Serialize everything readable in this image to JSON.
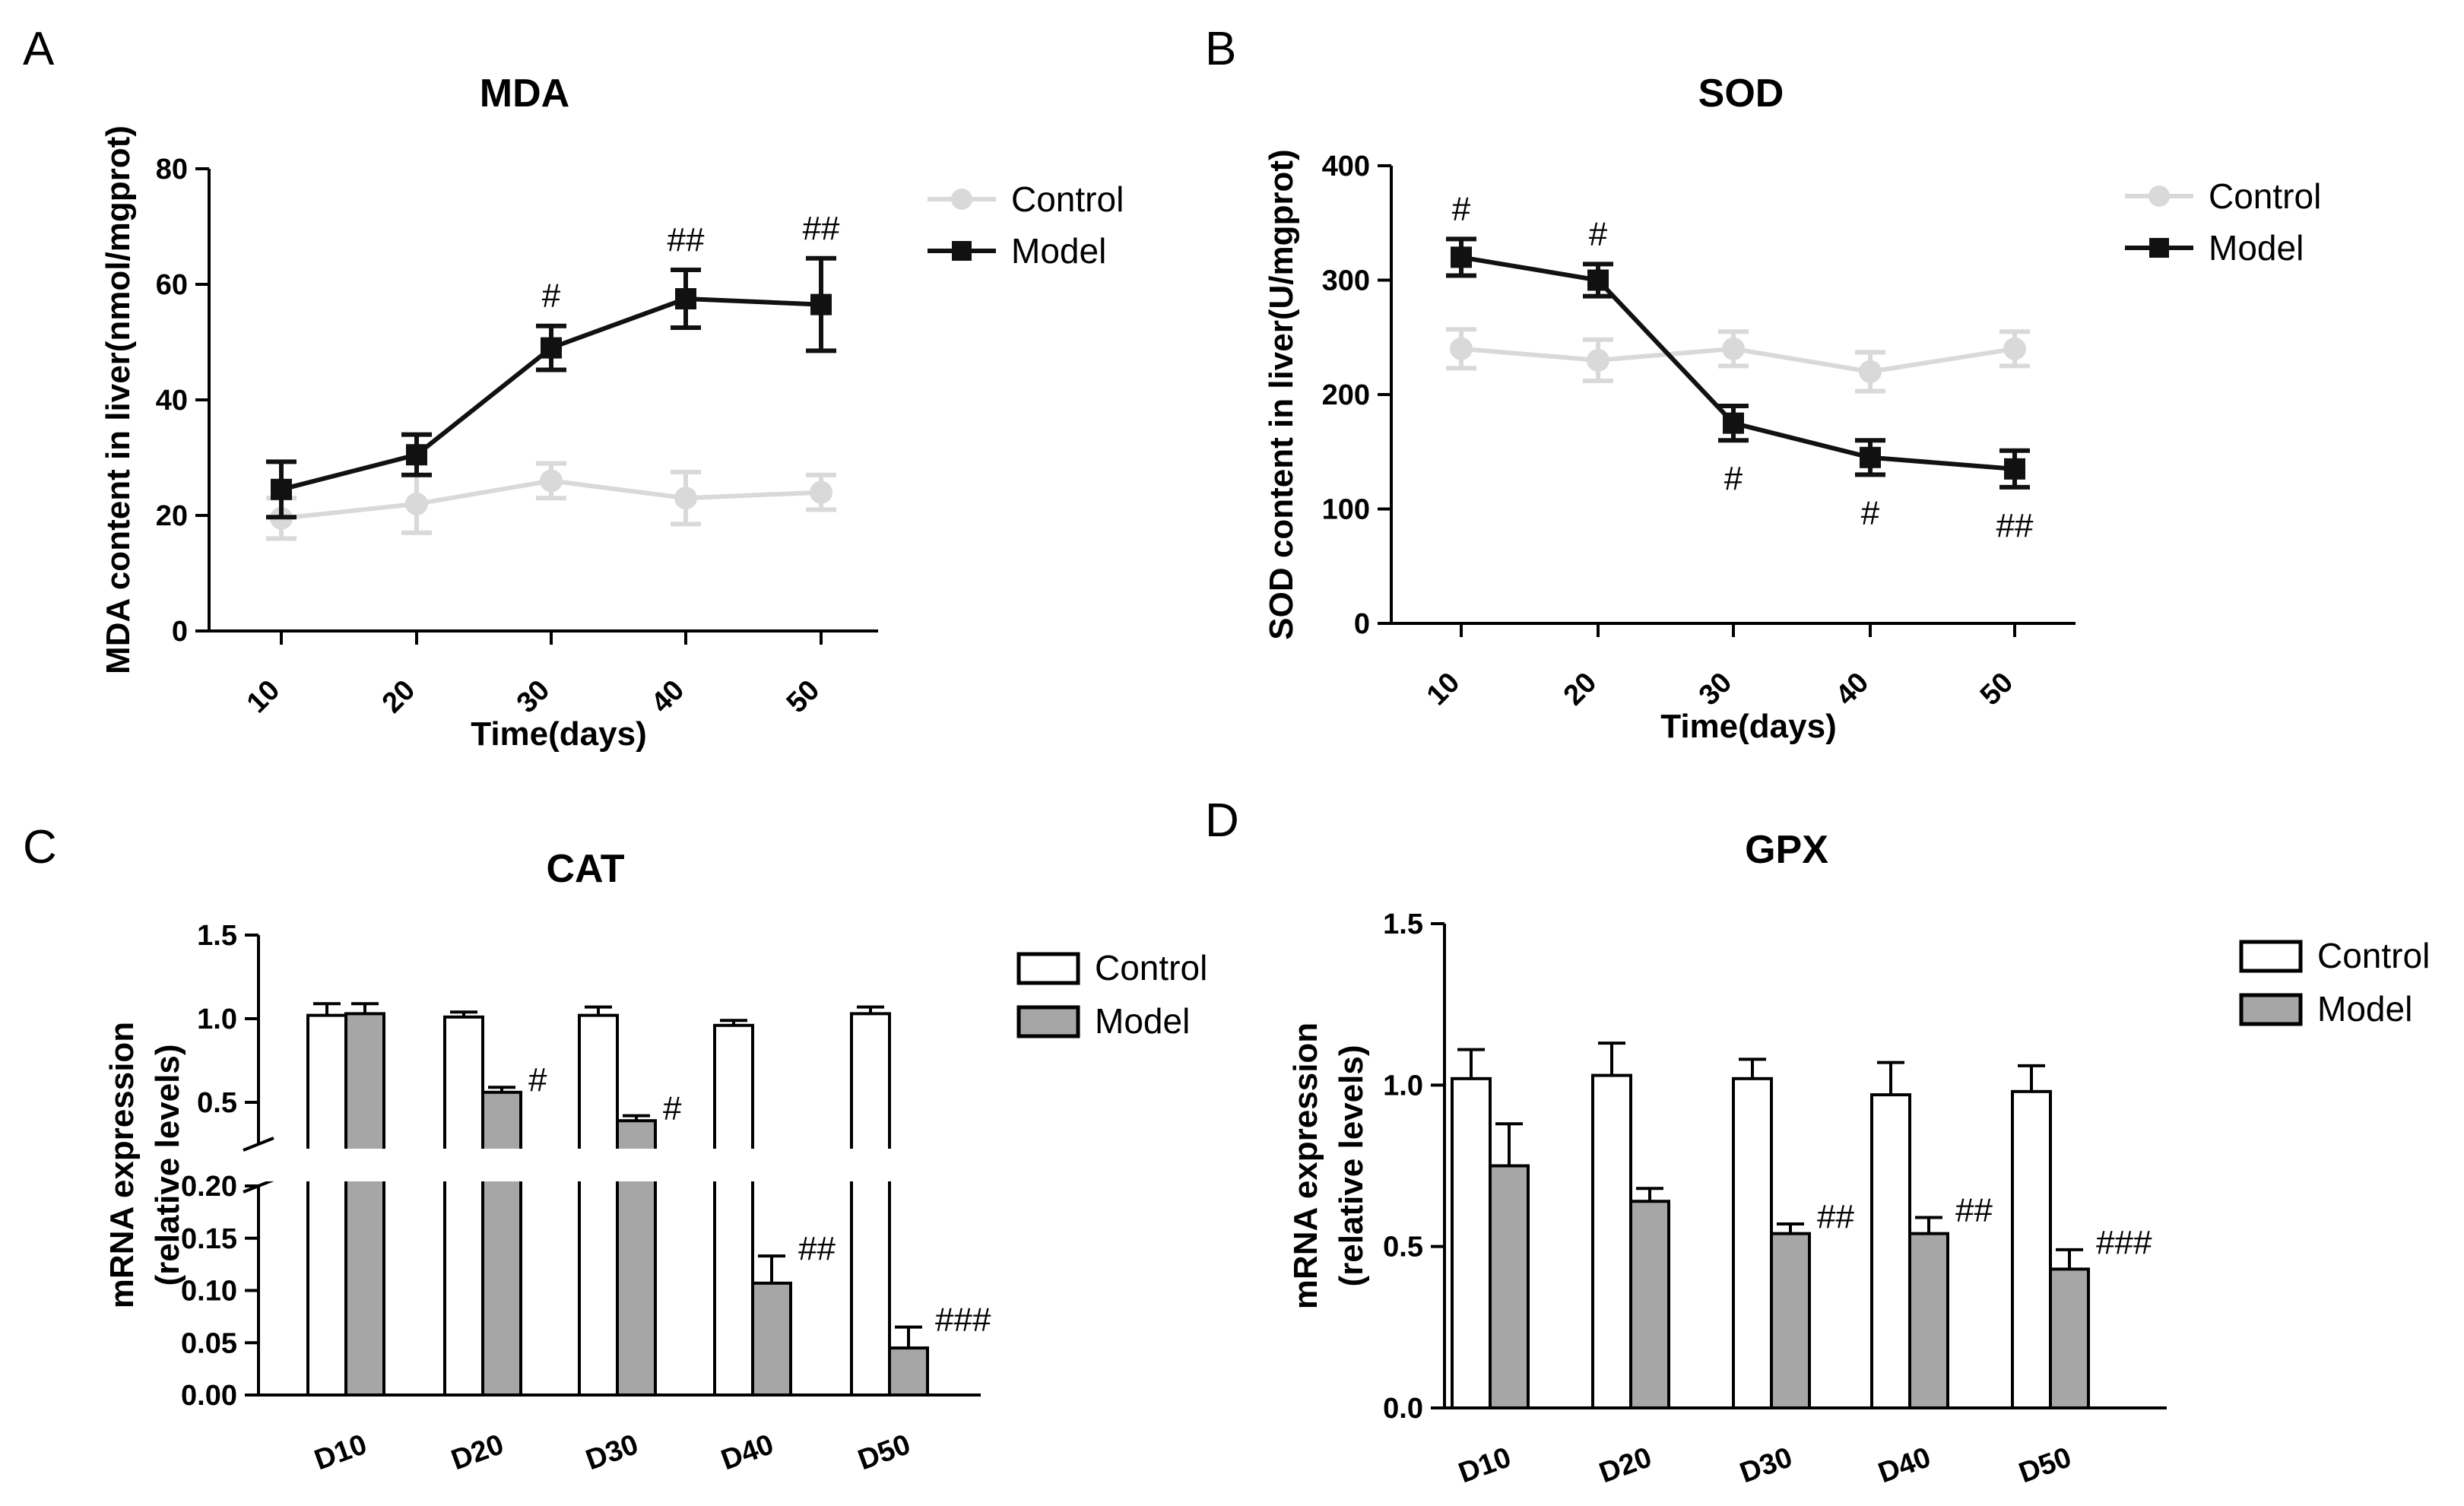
{
  "figure": {
    "panels": [
      "A",
      "B",
      "C",
      "D"
    ]
  },
  "chart_data": [
    {
      "id": "A",
      "type": "line",
      "title": "MDA",
      "xlabel": "Time(days)",
      "ylabel": "MDA content in liver(nmol/mgprot)",
      "x": [
        10,
        20,
        30,
        40,
        50
      ],
      "x_tick_labels": [
        "10",
        "20",
        "30",
        "40",
        "50"
      ],
      "ylim": [
        0,
        80
      ],
      "y_ticks": [
        0,
        20,
        40,
        60,
        80
      ],
      "y_tick_labels": [
        "0",
        "20",
        "40",
        "60",
        "80"
      ],
      "legend": {
        "position": "right",
        "entries": [
          "Control",
          "Model"
        ]
      },
      "series": [
        {
          "name": "Control",
          "color": "#d9d9d9",
          "marker": "circle",
          "values": [
            19.5,
            22,
            26,
            23,
            24
          ],
          "errors": [
            3.5,
            5,
            3,
            4.5,
            3
          ]
        },
        {
          "name": "Model",
          "color": "#111111",
          "marker": "square",
          "values": [
            24.5,
            30.5,
            49,
            57.5,
            56.5
          ],
          "errors": [
            4.8,
            3.5,
            3.8,
            5,
            8
          ]
        }
      ],
      "annotations": [
        {
          "x": 30,
          "text": "#",
          "placement": "above"
        },
        {
          "x": 40,
          "text": "##",
          "placement": "above"
        },
        {
          "x": 50,
          "text": "##",
          "placement": "above"
        }
      ]
    },
    {
      "id": "B",
      "type": "line",
      "title": "SOD",
      "xlabel": "Time(days)",
      "ylabel": "SOD content in liver(U/mgprot)",
      "x": [
        10,
        20,
        30,
        40,
        50
      ],
      "x_tick_labels": [
        "10",
        "20",
        "30",
        "40",
        "50"
      ],
      "ylim": [
        0,
        400
      ],
      "y_ticks": [
        0,
        100,
        200,
        300,
        400
      ],
      "y_tick_labels": [
        "0",
        "100",
        "200",
        "300",
        "400"
      ],
      "legend": {
        "position": "right",
        "entries": [
          "Control",
          "Model"
        ]
      },
      "series": [
        {
          "name": "Control",
          "color": "#d9d9d9",
          "marker": "circle",
          "values": [
            240,
            230,
            240,
            220,
            240
          ],
          "errors": [
            17,
            18,
            15,
            17,
            15
          ]
        },
        {
          "name": "Model",
          "color": "#111111",
          "marker": "square",
          "values": [
            320,
            300,
            175,
            145,
            135
          ],
          "errors": [
            16,
            14,
            15,
            15,
            16
          ]
        }
      ],
      "annotations": [
        {
          "x": 10,
          "text": "#",
          "placement": "above"
        },
        {
          "x": 20,
          "text": "#",
          "placement": "above"
        },
        {
          "x": 30,
          "text": "#",
          "placement": "below"
        },
        {
          "x": 40,
          "text": "#",
          "placement": "below"
        },
        {
          "x": 50,
          "text": "##",
          "placement": "below"
        }
      ]
    },
    {
      "id": "C",
      "type": "bar",
      "title": "CAT",
      "xlabel": "",
      "ylabel": "mRNA expression (relative levels)",
      "ylabel_lines": [
        "mRNA expression",
        "(relative levels)"
      ],
      "categories": [
        "D10",
        "D20",
        "D30",
        "D40",
        "D50"
      ],
      "axis_break": {
        "lower": [
          0,
          0.2
        ],
        "upper": [
          0.25,
          1.5
        ]
      },
      "y_ticks_lower": [
        0,
        0.05,
        0.1,
        0.15,
        0.2
      ],
      "y_tick_labels_lower": [
        "0.00",
        "0.05",
        "0.10",
        "0.15",
        "0.20"
      ],
      "y_ticks_upper": [
        0.5,
        1.0,
        1.5
      ],
      "y_tick_labels_upper": [
        "0.5",
        "1.0",
        "1.5"
      ],
      "legend": {
        "position": "right",
        "entries": [
          "Control",
          "Model"
        ]
      },
      "series": [
        {
          "name": "Control",
          "fill": "#ffffff",
          "values": [
            1.02,
            1.01,
            1.02,
            0.96,
            1.03
          ],
          "errors": [
            0.07,
            0.03,
            0.05,
            0.03,
            0.04
          ]
        },
        {
          "name": "Model",
          "fill": "#a6a6a6",
          "values": [
            1.03,
            0.56,
            0.39,
            0.107,
            0.045
          ],
          "errors": [
            0.06,
            0.03,
            0.03,
            0.026,
            0.02
          ]
        }
      ],
      "annotations": [
        {
          "category": "D20",
          "text": "#"
        },
        {
          "category": "D30",
          "text": "#"
        },
        {
          "category": "D40",
          "text": "##"
        },
        {
          "category": "D50",
          "text": "###"
        }
      ]
    },
    {
      "id": "D",
      "type": "bar",
      "title": "GPX",
      "xlabel": "",
      "ylabel": "mRNA expression (relative levels)",
      "ylabel_lines": [
        "mRNA expression",
        "(relative levels)"
      ],
      "categories": [
        "D10",
        "D20",
        "D30",
        "D40",
        "D50"
      ],
      "ylim": [
        0,
        1.5
      ],
      "y_ticks": [
        0,
        0.5,
        1.0,
        1.5
      ],
      "y_tick_labels": [
        "0.0",
        "0.5",
        "1.0",
        "1.5"
      ],
      "legend": {
        "position": "right",
        "entries": [
          "Control",
          "Model"
        ]
      },
      "series": [
        {
          "name": "Control",
          "fill": "#ffffff",
          "values": [
            1.02,
            1.03,
            1.02,
            0.97,
            0.98
          ],
          "errors": [
            0.09,
            0.1,
            0.06,
            0.1,
            0.08
          ]
        },
        {
          "name": "Model",
          "fill": "#a6a6a6",
          "values": [
            0.75,
            0.64,
            0.54,
            0.54,
            0.43
          ],
          "errors": [
            0.13,
            0.04,
            0.03,
            0.05,
            0.06
          ]
        }
      ],
      "annotations": [
        {
          "category": "D30",
          "text": "##"
        },
        {
          "category": "D40",
          "text": "##"
        },
        {
          "category": "D50",
          "text": "###"
        }
      ]
    }
  ]
}
